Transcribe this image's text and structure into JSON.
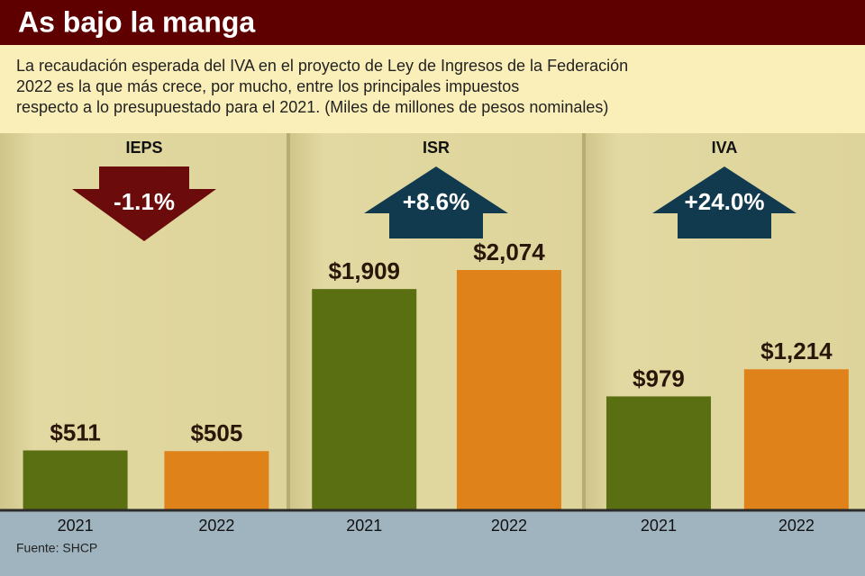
{
  "title": "As bajo la manga",
  "subtitle_lines": [
    "La recaudación esperada del IVA en el proyecto de Ley de Ingresos de la Federación",
    "2022 es la que más crece, por mucho, entre los principales impuestos",
    "respecto a lo presupuestado para el 2021.   (Miles de millones de pesos nominales)"
  ],
  "source": "Fuente: SHCP",
  "chart_data": [
    {
      "type": "bar",
      "title": "IEPS",
      "annotation": "-1.1%",
      "arrow": "down",
      "arrow_color": "#6b0b0b",
      "categories": [
        "2021",
        "2022"
      ],
      "values": [
        511,
        505
      ],
      "value_labels": [
        "$511",
        "$505"
      ],
      "colors": [
        "#5a6e12",
        "#e0821a"
      ]
    },
    {
      "type": "bar",
      "title": "ISR",
      "annotation": "+8.6%",
      "arrow": "up",
      "arrow_color": "#123a4f",
      "categories": [
        "2021",
        "2022"
      ],
      "values": [
        1909,
        2074
      ],
      "value_labels": [
        "$1,909",
        "$2,074"
      ],
      "colors": [
        "#5a6e12",
        "#e0821a"
      ]
    },
    {
      "type": "bar",
      "title": "IVA",
      "annotation": "+24.0%",
      "arrow": "up",
      "arrow_color": "#123a4f",
      "categories": [
        "2021",
        "2022"
      ],
      "values": [
        979,
        1214
      ],
      "value_labels": [
        "$979",
        "$1,214"
      ],
      "colors": [
        "#5a6e12",
        "#e0821a"
      ]
    }
  ]
}
